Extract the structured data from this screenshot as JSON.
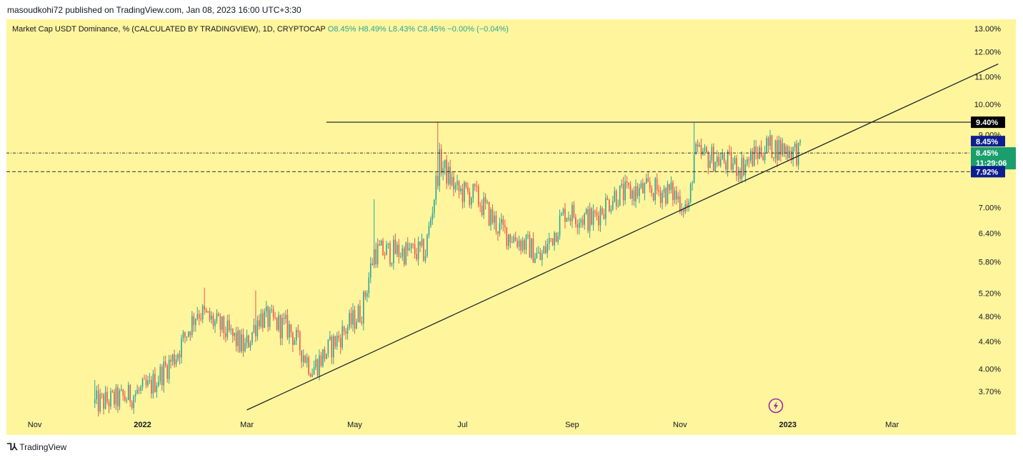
{
  "header": {
    "publish_line": "masoudkohi72 published on TradingView.com, Jan 08, 2023 16:00 UTC+3:30"
  },
  "legend": {
    "title": "Market Cap USDT Dominance, % (CALCULATED BY TRADINGVIEW), 1D, CRYPTOCAP",
    "open": "O8.45%",
    "high": "H8.49%",
    "low": "L8.43%",
    "close": "C8.45%",
    "change": "−0.00% (−0.04%)"
  },
  "footer": {
    "logo_text": "TradingView"
  },
  "colors": {
    "background": "#fff59d",
    "up_candle": "#26a69a",
    "down_candle": "#ef5350",
    "line": "#131722",
    "resistance_tag": "#000000",
    "support_tag": "#0d1f8f",
    "current_tag": "#1a9e6e"
  },
  "chart_data": {
    "type": "candlestick",
    "symbol": "Market Cap USDT Dominance",
    "timeframe": "1D",
    "y_scale": "log",
    "ylim": [
      3.5,
      13.3
    ],
    "y_ticks": [
      "13.00%",
      "12.00%",
      "11.00%",
      "10.00%",
      "9.00%",
      "7.00%",
      "6.40%",
      "5.80%",
      "5.20%",
      "4.80%",
      "4.40%",
      "4.00%",
      "3.70%"
    ],
    "y_tick_values": [
      13.0,
      12.0,
      11.0,
      10.0,
      9.0,
      7.0,
      6.4,
      5.8,
      5.2,
      4.8,
      4.4,
      4.0,
      3.7
    ],
    "x_ticks": [
      "Nov",
      "2022",
      "Mar",
      "May",
      "Jul",
      "Sep",
      "Nov",
      "2023",
      "Mar"
    ],
    "x_tick_dates": [
      "2021-11-01",
      "2022-01-01",
      "2022-03-01",
      "2022-05-01",
      "2022-07-01",
      "2022-09-01",
      "2022-11-01",
      "2023-01-01",
      "2023-03-01"
    ],
    "x_range": [
      "2021-10-16",
      "2023-05-10"
    ],
    "price_path": [
      {
        "date": "2021-12-05",
        "value": 3.55
      },
      {
        "date": "2021-12-22",
        "value": 3.62
      },
      {
        "date": "2022-01-05",
        "value": 3.75
      },
      {
        "date": "2022-01-20",
        "value": 4.2
      },
      {
        "date": "2022-02-01",
        "value": 4.9
      },
      {
        "date": "2022-02-15",
        "value": 4.6
      },
      {
        "date": "2022-02-28",
        "value": 4.3
      },
      {
        "date": "2022-03-08",
        "value": 4.8
      },
      {
        "date": "2022-03-25",
        "value": 4.6
      },
      {
        "date": "2022-04-07",
        "value": 4.0
      },
      {
        "date": "2022-04-20",
        "value": 4.4
      },
      {
        "date": "2022-05-05",
        "value": 4.9
      },
      {
        "date": "2022-05-12",
        "value": 6.0
      },
      {
        "date": "2022-05-25",
        "value": 6.0
      },
      {
        "date": "2022-06-10",
        "value": 6.0
      },
      {
        "date": "2022-06-18",
        "value": 8.2
      },
      {
        "date": "2022-06-28",
        "value": 7.4
      },
      {
        "date": "2022-07-08",
        "value": 7.3
      },
      {
        "date": "2022-07-22",
        "value": 6.5
      },
      {
        "date": "2022-08-08",
        "value": 6.1
      },
      {
        "date": "2022-08-14",
        "value": 5.85
      },
      {
        "date": "2022-08-28",
        "value": 6.9
      },
      {
        "date": "2022-09-12",
        "value": 6.7
      },
      {
        "date": "2022-09-25",
        "value": 7.3
      },
      {
        "date": "2022-10-15",
        "value": 7.45
      },
      {
        "date": "2022-10-28",
        "value": 7.35
      },
      {
        "date": "2022-11-06",
        "value": 6.95
      },
      {
        "date": "2022-11-09",
        "value": 8.4
      },
      {
        "date": "2022-11-20",
        "value": 8.3
      },
      {
        "date": "2022-12-05",
        "value": 8.05
      },
      {
        "date": "2022-12-20",
        "value": 8.65
      },
      {
        "date": "2022-12-30",
        "value": 8.58
      },
      {
        "date": "2023-01-08",
        "value": 8.45
      }
    ],
    "horizontal_lines": [
      {
        "value": 9.4,
        "style": "solid",
        "label": "9.40%",
        "from_date": "2022-04-15"
      },
      {
        "value": 8.45,
        "style": "dash-dot",
        "label": "8.45%"
      },
      {
        "value": 7.92,
        "style": "dashed",
        "label": "7.92%"
      }
    ],
    "trendline": {
      "from": {
        "date": "2022-03-01",
        "value": 3.47
      },
      "to": {
        "date": "2023-04-30",
        "value": 11.5
      }
    },
    "current_price": {
      "label": "8.45%",
      "countdown": "11:29:06"
    },
    "last_candle": {
      "open": "8.45%",
      "high": "8.49%",
      "low": "8.43%",
      "close": "8.45%",
      "change": "−0.00% (−0.04%)"
    }
  }
}
